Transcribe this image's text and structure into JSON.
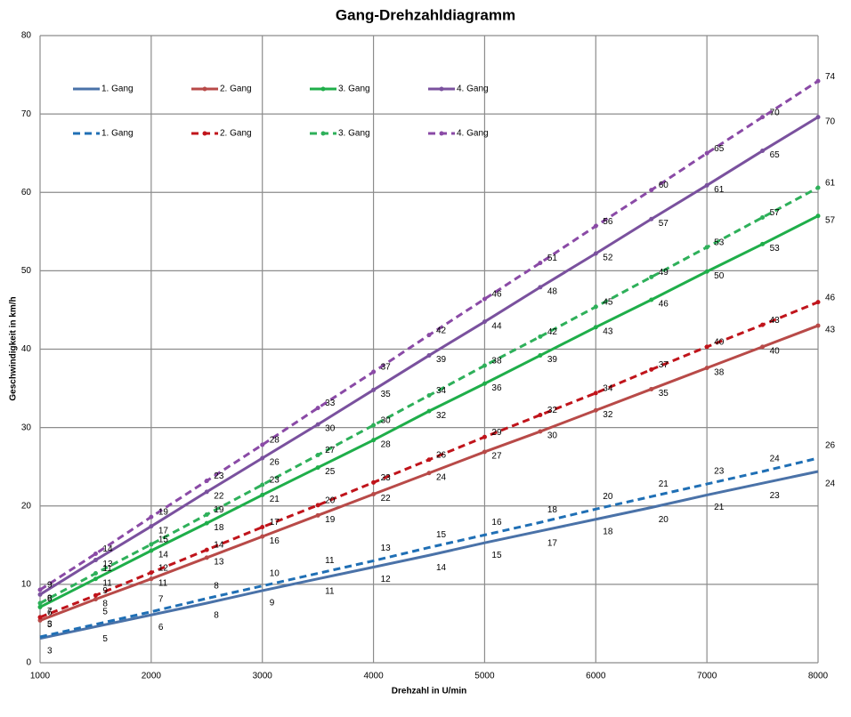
{
  "chart_data": {
    "type": "line",
    "title": "Gang-Drehzahldiagramm",
    "x_label": "Drehzahl in U/min",
    "y_label": "Geschwindigkeit in km/h",
    "x": [
      1000,
      1500,
      2000,
      2500,
      3000,
      3500,
      4000,
      4500,
      5000,
      5500,
      6000,
      6500,
      7000,
      7500,
      8000
    ],
    "xlim": [
      1000,
      8000
    ],
    "xticks": [
      1000,
      2000,
      3000,
      4000,
      5000,
      6000,
      7000,
      8000
    ],
    "ylim": [
      0,
      80
    ],
    "yticks": [
      0,
      10,
      20,
      30,
      40,
      50,
      60,
      70,
      80
    ],
    "grid": true,
    "legend": "top-left",
    "series": [
      {
        "name": "1. Gang",
        "color": "#4a72a8",
        "dashed": false,
        "marker": false,
        "values": [
          3.1,
          4.6,
          6.1,
          7.6,
          9.2,
          10.7,
          12.2,
          13.7,
          15.3,
          16.8,
          18.3,
          19.8,
          21.4,
          22.9,
          24.4
        ],
        "value_labels": [
          "3",
          "5",
          "6",
          "8",
          "9",
          "11",
          "12",
          "14",
          "15",
          "17",
          "18",
          "20",
          "21",
          "23",
          "24"
        ]
      },
      {
        "name": "2. Gang",
        "color": "#b84a48",
        "dashed": false,
        "marker": true,
        "values": [
          5.4,
          8.1,
          10.7,
          13.4,
          16.1,
          18.8,
          21.5,
          24.2,
          26.9,
          29.5,
          32.2,
          34.9,
          37.6,
          40.3,
          43.0
        ],
        "value_labels": [
          "5",
          "8",
          "11",
          "13",
          "16",
          "19",
          "22",
          "24",
          "27",
          "30",
          "32",
          "35",
          "38",
          "40",
          "43"
        ]
      },
      {
        "name": "3. Gang",
        "color": "#1fae4a",
        "dashed": false,
        "marker": true,
        "values": [
          7.1,
          10.7,
          14.3,
          17.8,
          21.4,
          24.9,
          28.4,
          32.1,
          35.6,
          39.2,
          42.8,
          46.3,
          49.9,
          53.4,
          57.0
        ],
        "value_labels": [
          "7",
          "11",
          "14",
          "18",
          "21",
          "25",
          "28",
          "32",
          "36",
          "39",
          "43",
          "46",
          "50",
          "53",
          "57"
        ]
      },
      {
        "name": "4. Gang",
        "color": "#7a519e",
        "dashed": false,
        "marker": true,
        "values": [
          8.7,
          13.1,
          17.4,
          21.8,
          26.1,
          30.4,
          34.8,
          39.2,
          43.5,
          47.9,
          52.2,
          56.6,
          60.9,
          65.3,
          69.6
        ],
        "value_labels": [
          "9",
          "13",
          "17",
          "22",
          "26",
          "30",
          "35",
          "39",
          "44",
          "48",
          "52",
          "57",
          "61",
          "65",
          "70"
        ]
      },
      {
        "name": "1. Gang",
        "color": "#1f6fb5",
        "dashed": true,
        "marker": false,
        "values": [
          3.3,
          4.9,
          6.5,
          8.2,
          9.8,
          11.4,
          13.0,
          14.7,
          16.3,
          17.9,
          19.6,
          21.2,
          22.8,
          24.4,
          26.1
        ],
        "value_labels": [
          "3",
          "5",
          "7",
          "8",
          "10",
          "11",
          "13",
          "15",
          "16",
          "18",
          "20",
          "21",
          "23",
          "24",
          "26"
        ]
      },
      {
        "name": "2. Gang",
        "color": "#c0141b",
        "dashed": true,
        "marker": true,
        "values": [
          5.8,
          8.6,
          11.5,
          14.4,
          17.3,
          20.1,
          23.0,
          25.9,
          28.8,
          31.6,
          34.4,
          37.4,
          40.3,
          43.1,
          46.0
        ],
        "value_labels": [
          "6",
          "9",
          "12",
          "14",
          "17",
          "20",
          "23",
          "26",
          "29",
          "32",
          "34",
          "37",
          "40",
          "43",
          "46"
        ]
      },
      {
        "name": "3. Gang",
        "color": "#2eb05a",
        "dashed": true,
        "marker": true,
        "values": [
          7.6,
          11.4,
          15.1,
          18.9,
          22.7,
          26.5,
          30.3,
          34.1,
          37.9,
          41.6,
          45.4,
          49.2,
          53.0,
          56.8,
          60.6
        ],
        "value_labels": [
          "8",
          "11",
          "15",
          "19",
          "23",
          "27",
          "30",
          "34",
          "38",
          "42",
          "45",
          "49",
          "53",
          "57",
          "61"
        ]
      },
      {
        "name": "4. Gang",
        "color": "#8a4aa6",
        "dashed": true,
        "marker": true,
        "values": [
          9.3,
          13.9,
          18.6,
          23.2,
          27.8,
          32.5,
          37.1,
          41.8,
          46.4,
          51.0,
          55.7,
          60.3,
          65.0,
          69.6,
          74.2
        ],
        "value_labels": [
          "9",
          "14",
          "19",
          "23",
          "28",
          "33",
          "37",
          "42",
          "46",
          "51",
          "56",
          "60",
          "65",
          "70",
          "74"
        ]
      }
    ]
  }
}
